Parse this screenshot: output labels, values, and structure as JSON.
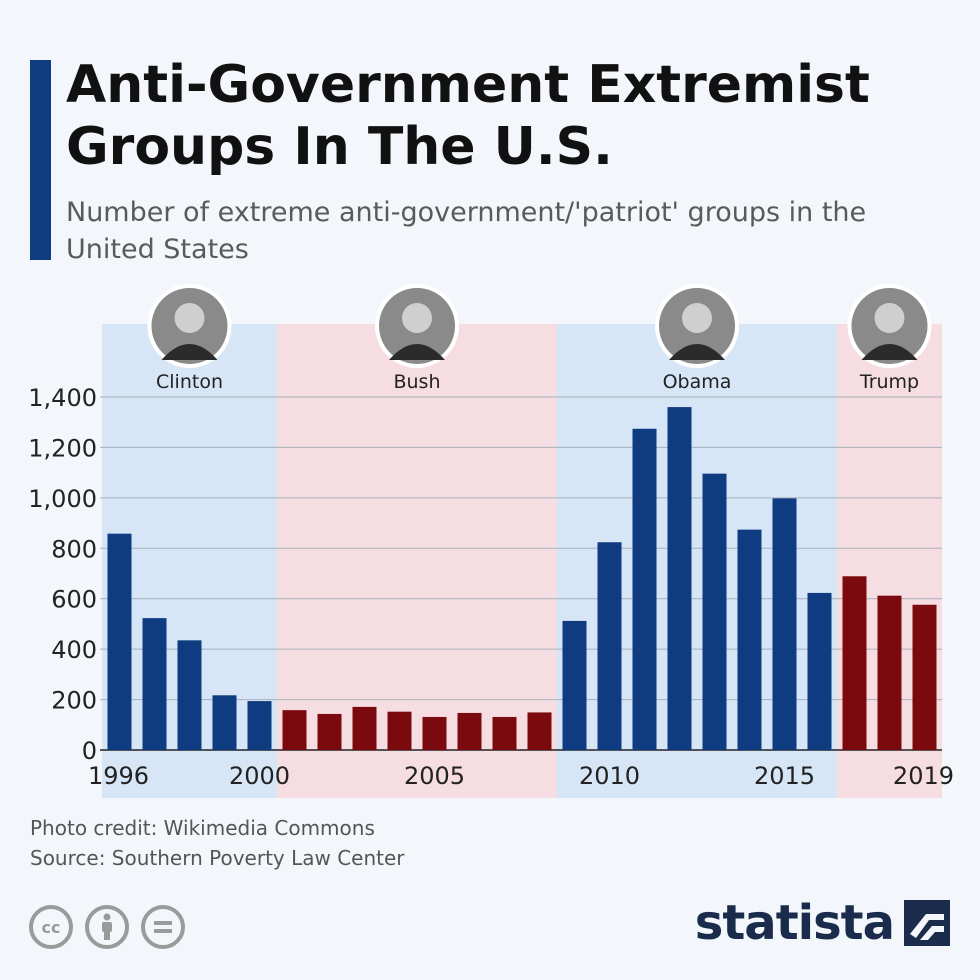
{
  "header": {
    "title": "Anti-Government Extremist Groups In The U.S.",
    "subtitle": "Number of extreme anti-government/'patriot' groups in the United States"
  },
  "footer": {
    "photo_credit": "Photo credit: Wikimedia Commons",
    "source": "Source: Southern Poverty Law Center",
    "brand": "statista"
  },
  "colors": {
    "accent": "#0f3b80",
    "democrat_bar": "#0f3b80",
    "republican_bar": "#7b0a0f",
    "democrat_band": "#d6e6f7",
    "republican_band": "#f6dde2"
  },
  "icons": [
    "cc-icon",
    "attribution-icon",
    "no-derivatives-icon",
    "statista-logo-icon"
  ],
  "chart_data": {
    "type": "bar",
    "title": "Anti-Government Extremist Groups In The U.S.",
    "x": [
      1996,
      1997,
      1998,
      1999,
      2000,
      2001,
      2002,
      2003,
      2004,
      2005,
      2006,
      2007,
      2008,
      2009,
      2010,
      2011,
      2012,
      2013,
      2014,
      2015,
      2016,
      2017,
      2018,
      2019
    ],
    "values": [
      858,
      523,
      435,
      217,
      194,
      158,
      143,
      171,
      152,
      131,
      147,
      131,
      149,
      512,
      824,
      1274,
      1360,
      1096,
      874,
      998,
      623,
      689,
      612,
      576
    ],
    "party": [
      "D",
      "D",
      "D",
      "D",
      "D",
      "R",
      "R",
      "R",
      "R",
      "R",
      "R",
      "R",
      "R",
      "D",
      "D",
      "D",
      "D",
      "D",
      "D",
      "D",
      "D",
      "R",
      "R",
      "R"
    ],
    "ylim": [
      0,
      1400
    ],
    "yticks": [
      "0",
      "200",
      "400",
      "600",
      "800",
      "1,000",
      "1,200",
      "1,400"
    ],
    "xticks": [
      {
        "year": 1996,
        "label": "1996"
      },
      {
        "year": 2000,
        "label": "2000"
      },
      {
        "year": 2005,
        "label": "2005"
      },
      {
        "year": 2010,
        "label": "2010"
      },
      {
        "year": 2015,
        "label": "2015"
      },
      {
        "year": 2019,
        "label": "2019"
      }
    ],
    "administrations": [
      {
        "name": "Clinton",
        "party": "D",
        "from": 1996,
        "to": 2000
      },
      {
        "name": "Bush",
        "party": "R",
        "from": 2001,
        "to": 2008
      },
      {
        "name": "Obama",
        "party": "D",
        "from": 2009,
        "to": 2016
      },
      {
        "name": "Trump",
        "party": "R",
        "from": 2017,
        "to": 2019
      }
    ],
    "grid": true
  }
}
